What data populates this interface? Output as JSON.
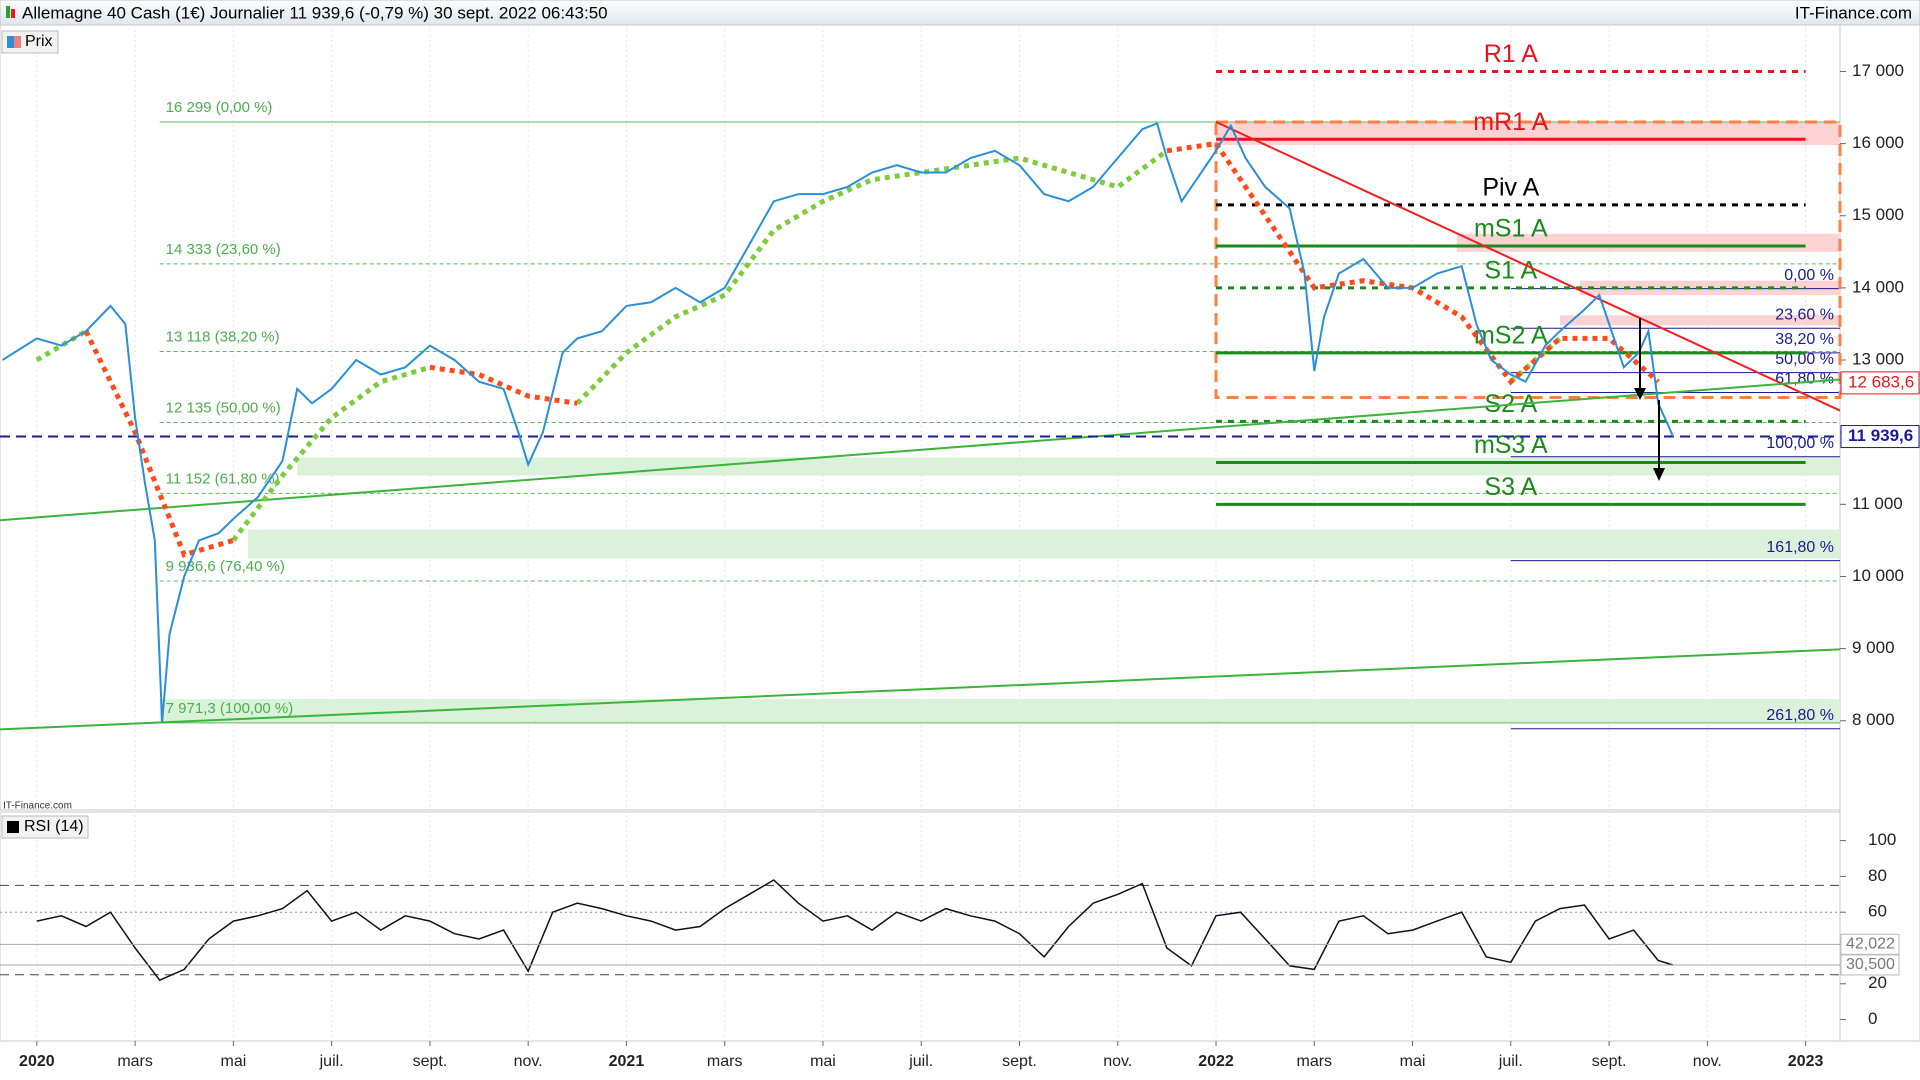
{
  "chart_data": {
    "type": "line",
    "title": "Allemagne 40 Cash (1€) Journalier 11 939,6 (-0,79 %) 30 sept. 2022 06:43:50",
    "source": "IT-Finance.com",
    "watermark": "IT-Finance.com",
    "xlim": [
      -0.75,
      36.7
    ],
    "xticks": [
      {
        "value": 0,
        "label": "2020"
      },
      {
        "value": 2,
        "label": "mars"
      },
      {
        "value": 4,
        "label": "mai"
      },
      {
        "value": 6,
        "label": "juil."
      },
      {
        "value": 8,
        "label": "sept."
      },
      {
        "value": 10,
        "label": "nov."
      },
      {
        "value": 12,
        "label": "2021"
      },
      {
        "value": 14,
        "label": "mars"
      },
      {
        "value": 16,
        "label": "mai"
      },
      {
        "value": 18,
        "label": "juil."
      },
      {
        "value": 20,
        "label": "sept."
      },
      {
        "value": 22,
        "label": "nov."
      },
      {
        "value": 24,
        "label": "2022"
      },
      {
        "value": 26,
        "label": "mars"
      },
      {
        "value": 28,
        "label": "mai"
      },
      {
        "value": 30,
        "label": "juil."
      },
      {
        "value": 32,
        "label": "sept."
      },
      {
        "value": 34,
        "label": "nov."
      },
      {
        "value": 36,
        "label": "2023"
      }
    ],
    "ylim": [
      6763,
      17644
    ],
    "yticks": [
      {
        "value": 8000,
        "label": "8 000"
      },
      {
        "value": 9000,
        "label": "9 000"
      },
      {
        "value": 10000,
        "label": "10 000"
      },
      {
        "value": 11000,
        "label": "11 000"
      },
      {
        "value": 12000,
        "label": "12 000"
      },
      {
        "value": 13000,
        "label": "13 000"
      },
      {
        "value": 14000,
        "label": "14 000"
      },
      {
        "value": 15000,
        "label": "15 000"
      },
      {
        "value": 16000,
        "label": "16 000"
      },
      {
        "value": 17000,
        "label": "17 000"
      }
    ],
    "x": [
      -0.7,
      0,
      0.5,
      1,
      1.5,
      1.8,
      2,
      2.2,
      2.4,
      2.55,
      2.7,
      3,
      3.3,
      3.7,
      4,
      4.5,
      5,
      5.3,
      5.6,
      6,
      6.5,
      7,
      7.5,
      8,
      8.5,
      9,
      9.5,
      9.8,
      10,
      10.3,
      10.7,
      11,
      11.5,
      12,
      12.5,
      13,
      13.5,
      14,
      14.5,
      15,
      15.5,
      16,
      16.5,
      17,
      17.5,
      18,
      18.5,
      19,
      19.5,
      20,
      20.5,
      21,
      21.5,
      22,
      22.5,
      22.8,
      23,
      23.3,
      23.6,
      24,
      24.3,
      24.6,
      25,
      25.5,
      25.8,
      26,
      26.2,
      26.5,
      27,
      27.5,
      28,
      28.5,
      29,
      29.3,
      29.6,
      30,
      30.3,
      30.7,
      31,
      31.5,
      31.8,
      32,
      32.3,
      32.6,
      32.8,
      33,
      33.2,
      33.3
    ],
    "series": [
      {
        "name": "Prix",
        "color": "#2a8fd8",
        "values": [
          13000,
          13300,
          13200,
          13400,
          13750,
          13500,
          12200,
          11300,
          10500,
          7980,
          9200,
          10000,
          10500,
          10600,
          10800,
          11100,
          11600,
          12600,
          12400,
          12600,
          13000,
          12800,
          12900,
          13200,
          13000,
          12700,
          12600,
          12000,
          11550,
          12000,
          13100,
          13300,
          13400,
          13750,
          13800,
          14000,
          13800,
          14000,
          14600,
          15200,
          15300,
          15300,
          15400,
          15600,
          15700,
          15600,
          15600,
          15800,
          15900,
          15700,
          15300,
          15200,
          15400,
          15800,
          16200,
          16280,
          15800,
          15200,
          15500,
          15900,
          16250,
          15800,
          15400,
          15100,
          14200,
          12850,
          13600,
          14200,
          14400,
          14000,
          14000,
          14200,
          14300,
          13500,
          13000,
          12800,
          12700,
          13200,
          13400,
          13700,
          13900,
          13500,
          12900,
          13100,
          13400,
          12400,
          12100,
          11940
        ]
      }
    ],
    "moving_average": {
      "x": [
        0,
        1,
        2,
        3,
        4,
        5,
        6,
        7,
        8,
        9,
        10,
        11,
        12,
        13,
        14,
        15,
        16,
        17,
        18,
        19,
        20,
        21,
        22,
        23,
        24,
        25,
        26,
        27,
        28,
        29,
        30,
        31,
        32,
        33
      ],
      "segments": [
        {
          "color": "#7ccc3c",
          "values": [
            13000,
            13400,
            null,
            null,
            10500,
            11400,
            12200,
            12700,
            12900,
            null,
            null,
            12400,
            13100,
            13600,
            13900,
            14800,
            15200,
            15500,
            15600,
            15700,
            15800,
            15600,
            15400,
            15900,
            null,
            null,
            null,
            null,
            null,
            null,
            12700,
            13300,
            null,
            null
          ]
        },
        {
          "color": "#ff4a1a",
          "values": [
            null,
            13400,
            12000,
            10300,
            10500,
            null,
            null,
            null,
            12900,
            12800,
            12500,
            12400,
            null,
            null,
            null,
            null,
            null,
            null,
            null,
            null,
            null,
            null,
            null,
            15900,
            16000,
            15000,
            14000,
            14100,
            14000,
            13600,
            12700,
            13300,
            13300,
            12700
          ]
        }
      ]
    },
    "zones": [
      {
        "x0": 5.3,
        "y0": 11400,
        "y1": 11650,
        "color": "#d9f2d9"
      },
      {
        "x0": 4.3,
        "y0": 10250,
        "y1": 10650,
        "color": "#d9f2d9"
      },
      {
        "x0": 2.5,
        "y0": 7971.3,
        "y1": 8300,
        "color": "#d9f2d9"
      },
      {
        "x0": 24,
        "y0": 15980,
        "y1": 16300,
        "color": "#fbd3d3"
      },
      {
        "x0": 28.9,
        "y0": 14500,
        "y1": 14750,
        "color": "#fbd3d3"
      },
      {
        "x0": 31.4,
        "y0": 13900,
        "y1": 14100,
        "color": "#fbd3d3"
      },
      {
        "x0": 31,
        "y0": 13480,
        "y1": 13620,
        "color": "#fbd3d3"
      }
    ],
    "fibo_left": [
      {
        "label": "16 299 (0,00 %)",
        "value": 16299
      },
      {
        "label": "14 333 (23,60 %)",
        "value": 14333
      },
      {
        "label": "13 118 (38,20 %)",
        "value": 13118
      },
      {
        "label": "12 135 (50,00 %)",
        "value": 12135
      },
      {
        "label": "11 152 (61,80 %)",
        "value": 11152
      },
      {
        "label": "9 936,6 (76,40 %)",
        "value": 9936.6
      },
      {
        "label": "7 971,3 (100,00 %)",
        "value": 7971.3
      }
    ],
    "fibo_left_start": 2.5,
    "fibo_right": [
      {
        "label": "0,00 %",
        "value": 13990
      },
      {
        "label": "23,60 %",
        "value": 13440
      },
      {
        "label": "38,20 %",
        "value": 13100
      },
      {
        "label": "50,00 %",
        "value": 12825
      },
      {
        "label": "61,80 %",
        "value": 12550
      },
      {
        "label": "100,00 %",
        "value": 11660
      },
      {
        "label": "161,80 %",
        "value": 10220
      },
      {
        "label": "261,80 %",
        "value": 7890
      }
    ],
    "fibo_right_start": 30,
    "pivots": [
      {
        "label": "R1 A",
        "value": 17000,
        "color": "#e8141e",
        "style": "dotted"
      },
      {
        "label": "mR1 A",
        "value": 16060,
        "color": "#e8141e",
        "style": "solid"
      },
      {
        "label": "Piv A",
        "value": 15150,
        "color": "#000000",
        "style": "dotted"
      },
      {
        "label": "mS1 A",
        "value": 14580,
        "color": "#1a8a1a",
        "style": "solid"
      },
      {
        "label": "S1 A",
        "value": 14000,
        "color": "#1a8a1a",
        "style": "dotted"
      },
      {
        "label": "mS2 A",
        "value": 13100,
        "color": "#1a8a1a",
        "style": "solid"
      },
      {
        "label": "S2 A",
        "value": 12150,
        "color": "#1a8a1a",
        "style": "dotted"
      },
      {
        "label": "mS3 A",
        "value": 11580,
        "color": "#1a8a1a",
        "style": "solid"
      },
      {
        "label": "S3 A",
        "value": 11000,
        "color": "#1a8a1a",
        "style": "solid"
      }
    ],
    "pivot_range": [
      24,
      36
    ],
    "trendlines": [
      {
        "x": [
          24,
          36.7
        ],
        "y": [
          16300,
          12300
        ],
        "color": "#f02020"
      },
      {
        "x": [
          -0.75,
          36.7
        ],
        "y": [
          10780,
          12730
        ],
        "color": "#3cb43c"
      },
      {
        "x": [
          -0.75,
          36.7
        ],
        "y": [
          7880,
          8990
        ],
        "color": "#3cb43c"
      }
    ],
    "box": {
      "x": [
        24,
        36.7
      ],
      "y": [
        12480,
        16300
      ],
      "color": "#ff8040"
    },
    "price_marker": {
      "value": 11939.6,
      "label": "11 939,6",
      "color": "#1a1aa0"
    },
    "ma_marker": {
      "value": 12683.6,
      "label": "12 683,6",
      "color": "#e8141e"
    },
    "rsi": {
      "title": "RSI (14)",
      "ylim": [
        -12,
        116
      ],
      "yticks": [
        0,
        20,
        60,
        80,
        100
      ],
      "levels": [
        25,
        75
      ],
      "midline": 60,
      "x": [
        0,
        0.5,
        1,
        1.5,
        2,
        2.5,
        3,
        3.5,
        4,
        4.5,
        5,
        5.5,
        6,
        6.5,
        7,
        7.5,
        8,
        8.5,
        9,
        9.5,
        10,
        10.5,
        11,
        11.5,
        12,
        12.5,
        13,
        13.5,
        14,
        14.5,
        15,
        15.5,
        16,
        16.5,
        17,
        17.5,
        18,
        18.5,
        19,
        19.5,
        20,
        20.5,
        21,
        21.5,
        22,
        22.5,
        23,
        23.5,
        24,
        24.5,
        25,
        25.5,
        26,
        26.5,
        27,
        27.5,
        28,
        28.5,
        29,
        29.5,
        30,
        30.5,
        31,
        31.5,
        32,
        32.5,
        33,
        33.3
      ],
      "values": [
        55,
        58,
        52,
        60,
        40,
        22,
        28,
        45,
        55,
        58,
        62,
        72,
        55,
        60,
        50,
        58,
        55,
        48,
        45,
        50,
        27,
        60,
        65,
        62,
        58,
        55,
        50,
        52,
        62,
        70,
        78,
        65,
        55,
        58,
        50,
        60,
        55,
        62,
        58,
        55,
        48,
        35,
        52,
        65,
        70,
        76,
        40,
        30,
        58,
        60,
        45,
        30,
        28,
        55,
        58,
        48,
        50,
        55,
        60,
        35,
        32,
        55,
        62,
        64,
        45,
        50,
        33,
        30.5
      ],
      "markers": [
        {
          "value": 42.022,
          "label": "42,022"
        },
        {
          "value": 30.5,
          "label": "30,500"
        }
      ]
    }
  }
}
